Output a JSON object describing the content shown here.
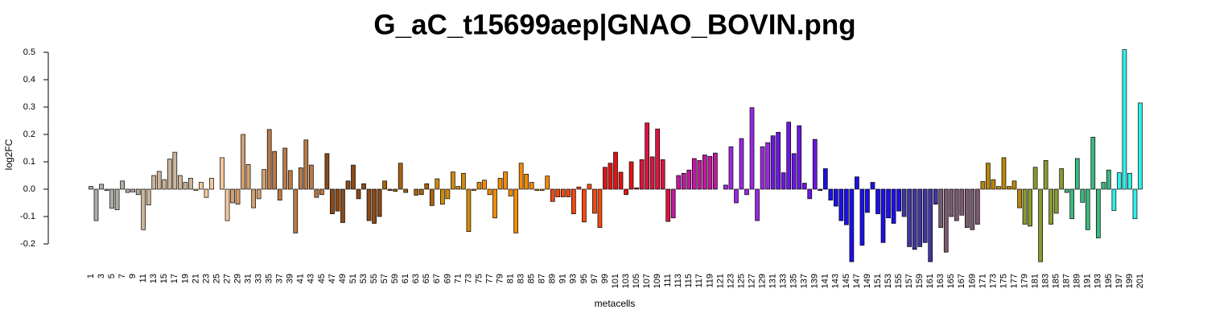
{
  "chart_data": {
    "type": "bar",
    "title": "G_aC_t15699aep|GNAO_BOVIN.png",
    "xlabel": "metacells",
    "ylabel": "log2FC",
    "categories": [
      "1",
      null,
      "3",
      null,
      "5",
      null,
      "7",
      null,
      "9",
      null,
      "11",
      null,
      "13",
      null,
      "15",
      null,
      "17",
      null,
      "19",
      null,
      "21",
      null,
      "23",
      null,
      "25",
      null,
      "27",
      null,
      "29",
      null,
      "31",
      null,
      "33",
      null,
      "35",
      null,
      "37",
      null,
      "39",
      null,
      "41",
      null,
      "43",
      null,
      "45",
      null,
      "47",
      null,
      "49",
      null,
      "51",
      null,
      "53",
      null,
      "55",
      null,
      "57",
      null,
      "59",
      null,
      "61",
      null,
      "63",
      null,
      "65",
      null,
      "67",
      null,
      "69",
      null,
      "71",
      null,
      "73",
      null,
      "75",
      null,
      "77",
      null,
      "79",
      null,
      "81",
      null,
      "83",
      null,
      "85",
      null,
      "87",
      null,
      "89",
      null,
      "91",
      null,
      "93",
      null,
      "95",
      null,
      "97",
      null,
      "99",
      null,
      "101",
      null,
      "103",
      null,
      "105",
      null,
      "107",
      null,
      "109",
      null,
      "111",
      null,
      "113",
      null,
      "115",
      null,
      "117",
      null,
      "119",
      null,
      "121",
      null,
      "123",
      null,
      "125",
      null,
      "127",
      null,
      "129",
      null,
      "131",
      null,
      "133",
      null,
      "135",
      null,
      "137",
      null,
      "139",
      null,
      "141",
      null,
      "143",
      null,
      "145",
      null,
      "147",
      null,
      "149",
      null,
      "151",
      null,
      "153",
      null,
      "155",
      null,
      "157",
      null,
      "159",
      null,
      "161",
      null,
      "163",
      null,
      "165",
      null,
      "167",
      null,
      "169",
      null,
      "171",
      null,
      "173",
      null,
      "175",
      null,
      "177",
      null,
      "179",
      null,
      "181",
      null,
      "183",
      null,
      "185",
      null,
      "187",
      null,
      "189",
      null,
      "191",
      null,
      "193",
      null,
      "195",
      null,
      "197",
      null,
      "199",
      null,
      "201"
    ],
    "values": [
      0.01,
      -0.115,
      0.018,
      -0.005,
      -0.07,
      -0.075,
      0.03,
      -0.012,
      -0.01,
      -0.02,
      -0.148,
      -0.058,
      0.05,
      0.065,
      0.035,
      0.11,
      0.135,
      0.05,
      0.025,
      0.04,
      -0.005,
      0.025,
      -0.03,
      0.04,
      0.0,
      0.115,
      -0.115,
      -0.05,
      -0.055,
      0.2,
      0.09,
      -0.068,
      -0.035,
      0.072,
      0.218,
      0.138,
      -0.04,
      0.15,
      0.068,
      -0.16,
      0.078,
      0.18,
      0.088,
      -0.03,
      -0.02,
      0.13,
      -0.09,
      -0.08,
      -0.122,
      0.03,
      0.088,
      -0.035,
      0.02,
      -0.115,
      -0.125,
      -0.1,
      0.03,
      -0.005,
      -0.008,
      0.095,
      -0.012,
      0.0,
      -0.022,
      -0.02,
      0.02,
      -0.06,
      0.038,
      -0.055,
      -0.035,
      0.063,
      0.01,
      0.058,
      -0.155,
      -0.005,
      0.025,
      0.033,
      -0.02,
      -0.105,
      0.04,
      0.063,
      -0.025,
      -0.16,
      0.095,
      0.055,
      0.025,
      -0.005,
      -0.005,
      0.048,
      -0.045,
      -0.028,
      -0.028,
      -0.028,
      -0.09,
      0.008,
      -0.12,
      0.018,
      -0.088,
      -0.14,
      0.08,
      0.095,
      0.135,
      0.062,
      -0.02,
      0.1,
      0.005,
      0.108,
      0.242,
      0.118,
      0.22,
      0.108,
      -0.118,
      -0.105,
      0.05,
      0.058,
      0.07,
      0.112,
      0.105,
      0.125,
      0.12,
      0.132,
      0.0,
      0.015,
      0.155,
      -0.05,
      0.185,
      -0.02,
      0.298,
      -0.115,
      0.155,
      0.17,
      0.195,
      0.208,
      0.06,
      0.245,
      0.13,
      0.232,
      0.022,
      -0.035,
      0.182,
      -0.005,
      0.075,
      -0.04,
      -0.062,
      -0.115,
      -0.13,
      -0.265,
      0.045,
      -0.205,
      -0.085,
      0.025,
      -0.09,
      -0.195,
      -0.105,
      -0.125,
      -0.08,
      -0.1,
      -0.21,
      -0.22,
      -0.21,
      -0.195,
      -0.265,
      -0.055,
      -0.14,
      -0.23,
      -0.1,
      -0.115,
      -0.095,
      -0.14,
      -0.148,
      -0.128,
      0.028,
      0.095,
      0.035,
      0.01,
      0.115,
      0.01,
      0.03,
      -0.068,
      -0.128,
      -0.135,
      0.08,
      -0.265,
      0.105,
      -0.128,
      -0.088,
      0.075,
      -0.012,
      -0.108,
      0.112,
      -0.048,
      -0.148,
      0.19,
      -0.178,
      0.025,
      0.07,
      -0.078,
      0.06,
      0.51,
      0.058,
      -0.108,
      0.315
    ],
    "colors": [
      "#b0aba5",
      "#b0aba5",
      "#b0aba5",
      "#b0aba5",
      "#b0aba5",
      "#b0aba5",
      "#b0aba5",
      "#b0aba5",
      "#b0aba5",
      "#b0aba5",
      "#cdb59a",
      "#cdb59a",
      "#cdb59a",
      "#cdb59a",
      "#cdb59a",
      "#cdb59a",
      "#cdb59a",
      "#cdb59a",
      "#cdb59a",
      "#cdb59a",
      "#f2c89c",
      "#f2c89c",
      "#f2c89c",
      "#f2c89c",
      "#f2c89c",
      "#f2c89c",
      "#f2c89c",
      "#d4a070",
      "#d4a070",
      "#d4a070",
      "#d4a070",
      "#d4a070",
      "#d4a070",
      "#d4a070",
      "#b87a48",
      "#b87a48",
      "#b87a48",
      "#b87a48",
      "#b87a48",
      "#b87a48",
      "#b87a48",
      "#b87a48",
      "#b87a48",
      "#b87a48",
      "#b87a48",
      "#8b4a18",
      "#8b4a18",
      "#8b4a18",
      "#8b4a18",
      "#8b4a18",
      "#8b4a18",
      "#8b4a18",
      "#8b4a18",
      "#8b4a18",
      "#8b4a18",
      "#8b4a18",
      "#a8620e",
      "#a8620e",
      "#a8620e",
      "#a8620e",
      "#a8620e",
      "#a8620e",
      "#a8620e",
      "#a8620e",
      "#a8620e",
      "#a8620e",
      "#d08a0c",
      "#d08a0c",
      "#d08a0c",
      "#d08a0c",
      "#d08a0c",
      "#d08a0c",
      "#d08a0c",
      "#d08a0c",
      "#d08a0c",
      "#f58a05",
      "#f58a05",
      "#f58a05",
      "#f58a05",
      "#f58a05",
      "#f58a05",
      "#f58a05",
      "#f58a05",
      "#f58a05",
      "#f58a05",
      "#f58a05",
      "#f58a05",
      "#f58a05",
      "#f04a10",
      "#f04a10",
      "#f04a10",
      "#f04a10",
      "#f04a10",
      "#f04a10",
      "#f04a10",
      "#f04a10",
      "#f04a10",
      "#f04a10",
      "#e01414",
      "#e01414",
      "#e01414",
      "#e01414",
      "#e01414",
      "#e01414",
      "#dc1440",
      "#dc1440",
      "#dc1440",
      "#dc1440",
      "#dc1440",
      "#dc1440",
      "#dc1440",
      "#c018a0",
      "#c018a0",
      "#c018a0",
      "#c018a0",
      "#c018a0",
      "#c018a0",
      "#c018a0",
      "#c018a0",
      "#c018a0",
      "#c018a0",
      "#9a28e0",
      "#9a28e0",
      "#9a28e0",
      "#9a28e0",
      "#9a28e0",
      "#9a28e0",
      "#9a28e0",
      "#9a28e0",
      "#9a28e0",
      "#6a18e0",
      "#6a18e0",
      "#6a18e0",
      "#6a18e0",
      "#6a18e0",
      "#6a18e0",
      "#6a18e0",
      "#6a18e0",
      "#6a18e0",
      "#6a18e0",
      "#1c10e8",
      "#1c10e8",
      "#1c10e8",
      "#1c10e8",
      "#1c10e8",
      "#1c10e8",
      "#1c10e8",
      "#1c10e8",
      "#1c10e8",
      "#1c10e8",
      "#1c10e8",
      "#1c10e8",
      "#1c10e8",
      "#1c10e8",
      "#1c10e8",
      "#4036a0",
      "#4036a0",
      "#4036a0",
      "#4036a0",
      "#4036a0",
      "#4036a0",
      "#4036a0",
      "#7a5a70",
      "#7a5a70",
      "#7a5a70",
      "#7a5a70",
      "#7a5a70",
      "#7a5a70",
      "#7a5a70",
      "#7a5a70",
      "#b8860b",
      "#b8860b",
      "#b8860b",
      "#b8860b",
      "#b8860b",
      "#b8860b",
      "#b8860b",
      "#b8860b",
      "#8a9a30",
      "#8a9a30",
      "#8a9a30",
      "#8a9a30",
      "#8a9a30",
      "#8a9a30",
      "#8a9a30",
      "#8a9a30",
      "#3cb880",
      "#3cb880",
      "#3cb880",
      "#3cb880",
      "#3cb880",
      "#3cb880",
      "#3cb880",
      "#3cb880",
      "#3cb880",
      "#30f0e8",
      "#30f0e8",
      "#30f0e8",
      "#30f0e8",
      "#30f0e8",
      "#30f0e8"
    ],
    "ylim": [
      -0.27,
      0.52
    ],
    "yticks": [
      -0.2,
      -0.1,
      {
        "value": 0,
        "label": "0.0"
      },
      0.1,
      0.2,
      0.3,
      0.4,
      0.5
    ]
  }
}
